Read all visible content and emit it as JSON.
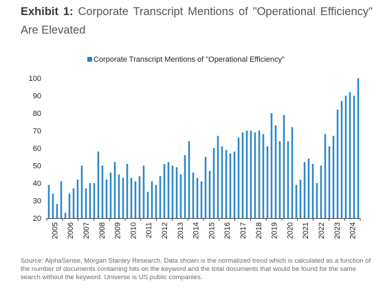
{
  "exhibit": {
    "label": "Exhibit 1:",
    "title": "Corporate Transcript Mentions of \"Operational Efficiency\" Are Elevated"
  },
  "source_note": "Source: AlphaSense, Morgan Stanley Research. Data shown is the normalized trend which is calculated as a function of the number of documents containing hits on the keyword and the total documents that would be found for the same search without the keyword. Universe is US public companies.",
  "colors": {
    "bar": "#2d86c7",
    "axis": "#404040",
    "text": "#404040"
  },
  "chart_data": {
    "type": "bar",
    "title": "",
    "xlabel": "",
    "ylabel": "",
    "legend": {
      "position": "top",
      "entries": [
        "Corporate Transcript Mentions of \"Operational Efficiency\""
      ]
    },
    "ylim": [
      20,
      100
    ],
    "yticks": [
      20,
      30,
      40,
      50,
      60,
      70,
      80,
      90,
      100
    ],
    "xticks": [
      "2005",
      "2006",
      "2007",
      "2008",
      "2009",
      "2010",
      "2011",
      "2012",
      "2013",
      "2014",
      "2015",
      "2016",
      "2017",
      "2018",
      "2019",
      "2020",
      "2021",
      "2022",
      "2023",
      "2024"
    ],
    "grid": false,
    "series": [
      {
        "name": "Corporate Transcript Mentions of \"Operational Efficiency\"",
        "values": [
          39,
          34,
          28,
          41,
          23,
          34,
          37,
          42,
          50,
          37,
          40,
          40,
          58,
          50,
          42,
          46,
          52,
          45,
          43,
          51,
          43,
          41,
          44,
          50,
          35,
          41,
          39,
          44,
          51,
          52,
          50,
          49,
          45,
          56,
          64,
          46,
          43,
          41,
          55,
          47,
          60,
          67,
          61,
          59,
          57,
          58,
          66,
          69,
          70,
          70,
          69,
          70,
          68,
          61,
          80,
          73,
          64,
          79,
          64,
          72,
          39,
          42,
          52,
          54,
          51,
          40,
          50,
          68,
          61,
          67,
          82,
          87,
          90,
          92,
          90,
          100
        ]
      }
    ]
  }
}
